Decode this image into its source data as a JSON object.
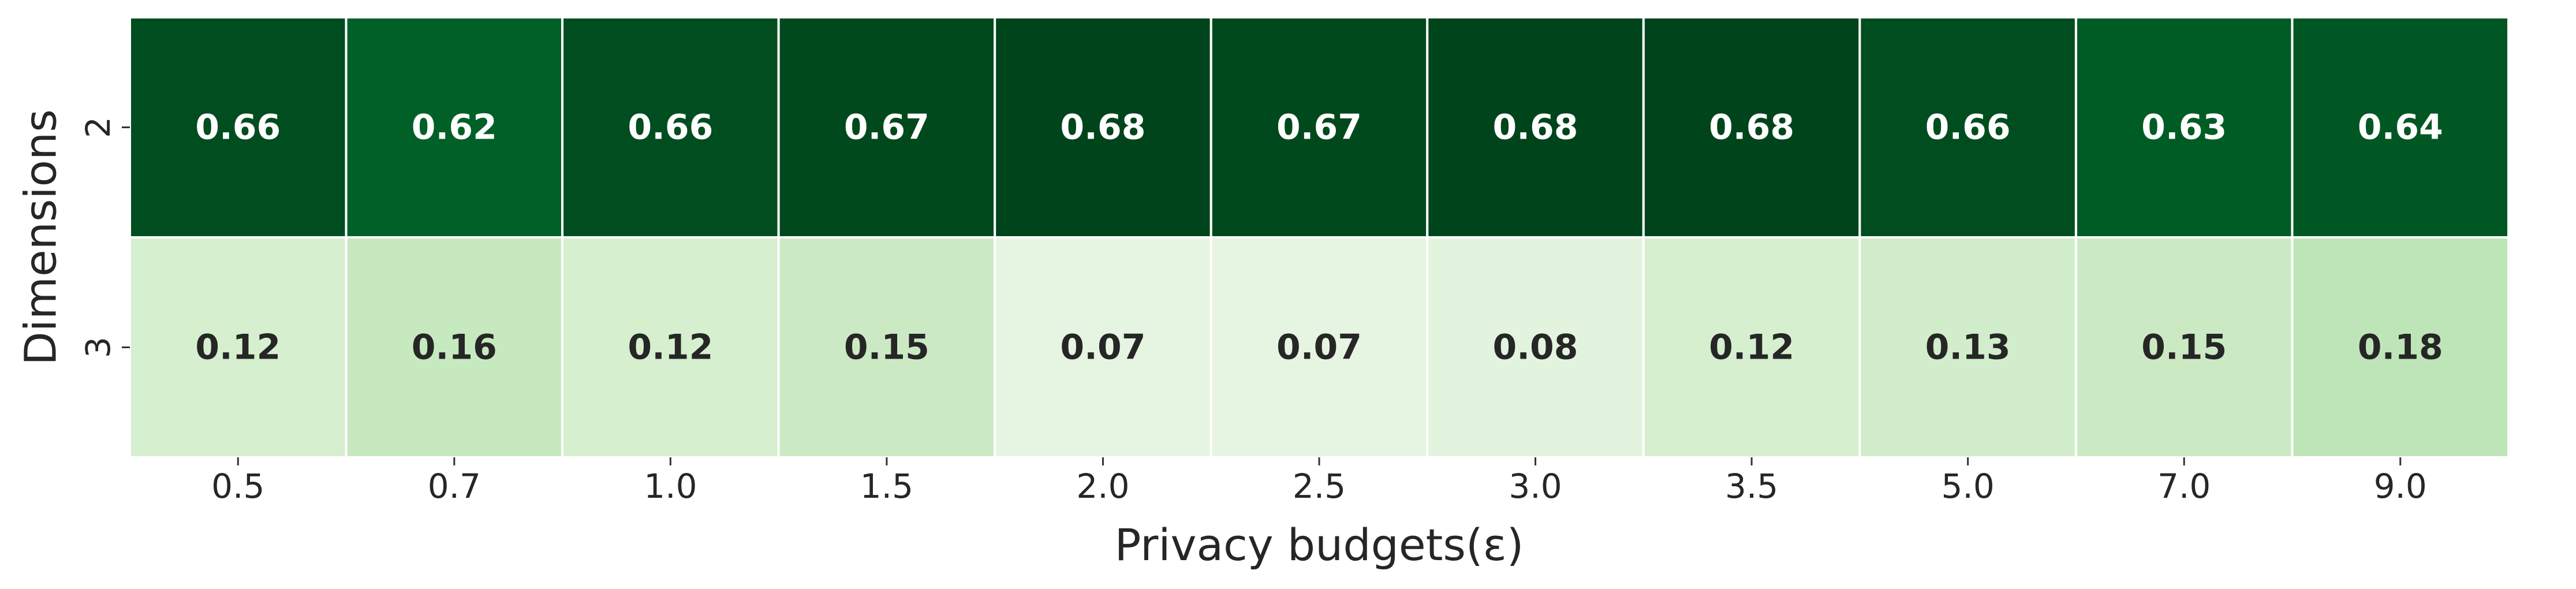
{
  "chart_data": {
    "type": "heatmap",
    "title": "",
    "xlabel": "Privacy budgets(ε)",
    "ylabel": "Dimensions",
    "x_categories": [
      "0.5",
      "0.7",
      "1.0",
      "1.5",
      "2.0",
      "2.5",
      "3.0",
      "3.5",
      "5.0",
      "7.0",
      "9.0"
    ],
    "y_categories": [
      "2",
      "3"
    ],
    "values": [
      [
        0.66,
        0.62,
        0.66,
        0.67,
        0.68,
        0.67,
        0.68,
        0.68,
        0.66,
        0.63,
        0.64
      ],
      [
        0.12,
        0.16,
        0.12,
        0.15,
        0.07,
        0.07,
        0.08,
        0.12,
        0.13,
        0.15,
        0.18
      ]
    ],
    "value_format": "0.00",
    "colormap": "Greens",
    "colorbar": false,
    "grid_lines": "white",
    "annotation_colors": {
      "dark_cell_text": "#ffffff",
      "light_cell_text": "#262626"
    }
  }
}
